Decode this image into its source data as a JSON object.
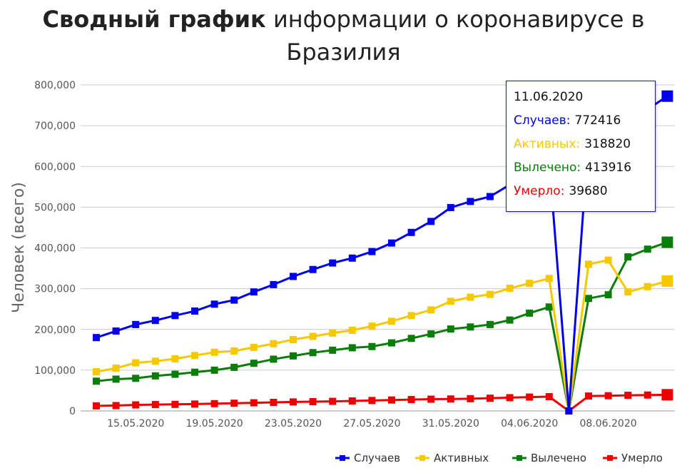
{
  "title": {
    "bold": "Сводный график",
    "rest": " информации о коронавирусе в Бразилия"
  },
  "chart_data": {
    "type": "line",
    "title": "Сводный график информации о коронавирусе в Бразилия",
    "ylabel": "Человек (всего)",
    "xlabel": "",
    "ylim": [
      0,
      800000
    ],
    "yticks": [
      "0",
      "100,000",
      "200,000",
      "300,000",
      "400,000",
      "500,000",
      "600,000",
      "700,000",
      "800,000"
    ],
    "yticks_values": [
      0,
      100000,
      200000,
      300000,
      400000,
      500000,
      600000,
      700000,
      800000
    ],
    "xtick_labels": [
      "15.05.2020",
      "19.05.2020",
      "23.05.2020",
      "27.05.2020",
      "31.05.2020",
      "04.06.2020",
      "08.06.2020"
    ],
    "xtick_dates": [
      "15.05.2020",
      "19.05.2020",
      "23.05.2020",
      "27.05.2020",
      "31.05.2020",
      "04.06.2020",
      "08.06.2020"
    ],
    "x": [
      "13.05.2020",
      "14.05.2020",
      "15.05.2020",
      "16.05.2020",
      "17.05.2020",
      "18.05.2020",
      "19.05.2020",
      "20.05.2020",
      "21.05.2020",
      "22.05.2020",
      "23.05.2020",
      "24.05.2020",
      "25.05.2020",
      "26.05.2020",
      "27.05.2020",
      "28.05.2020",
      "29.05.2020",
      "30.05.2020",
      "31.05.2020",
      "01.06.2020",
      "02.06.2020",
      "03.06.2020",
      "04.06.2020",
      "05.06.2020",
      "06.06.2020",
      "07.06.2020",
      "08.06.2020",
      "09.06.2020",
      "10.06.2020",
      "11.06.2020"
    ],
    "grid": true,
    "legend_position": "bottom-right",
    "series": [
      {
        "name": "Случаев",
        "color": "#0000ee",
        "values": [
          180000,
          196000,
          212000,
          222000,
          234000,
          245000,
          262000,
          272000,
          292000,
          310000,
          330000,
          347000,
          363000,
          375000,
          391000,
          412000,
          438000,
          465000,
          499000,
          514000,
          526000,
          555000,
          584000,
          614000,
          0,
          673000,
          690000,
          710000,
          740000,
          772416
        ]
      },
      {
        "name": "Активных",
        "color": "#f5c800",
        "values": [
          96000,
          105000,
          118000,
          122000,
          128000,
          136000,
          144000,
          147000,
          156000,
          165000,
          175000,
          183000,
          191000,
          198000,
          208000,
          220000,
          234000,
          248000,
          269000,
          279000,
          286000,
          301000,
          313000,
          325000,
          0,
          360000,
          370000,
          292000,
          305000,
          318820
        ]
      },
      {
        "name": "Вылечено",
        "color": "#0a7d0a",
        "values": [
          73000,
          78000,
          80000,
          86000,
          90000,
          95000,
          100000,
          107000,
          117000,
          127000,
          135000,
          143000,
          149000,
          155000,
          158000,
          167000,
          178000,
          189000,
          201000,
          206000,
          212000,
          223000,
          240000,
          255000,
          0,
          276000,
          285000,
          378000,
          397000,
          413916
        ]
      },
      {
        "name": "Умерло",
        "color": "#ee0000",
        "values": [
          12400,
          13100,
          14800,
          15600,
          16100,
          16900,
          17900,
          18900,
          20000,
          21000,
          22000,
          22700,
          23500,
          24500,
          25600,
          26800,
          27900,
          28800,
          29300,
          30000,
          31200,
          32500,
          34000,
          35000,
          0,
          36500,
          37300,
          38400,
          39000,
          39680
        ]
      }
    ],
    "tooltip": {
      "date": "11.06.2020",
      "rows": [
        {
          "label": "Случаев:",
          "value": "772416",
          "color": "#0000ee"
        },
        {
          "label": "Активных:",
          "value": "318820",
          "color": "#f5c800"
        },
        {
          "label": "Вылечено:",
          "value": "413916",
          "color": "#0a7d0a"
        },
        {
          "label": "Умерло:",
          "value": "39680",
          "color": "#ee0000"
        }
      ]
    }
  }
}
